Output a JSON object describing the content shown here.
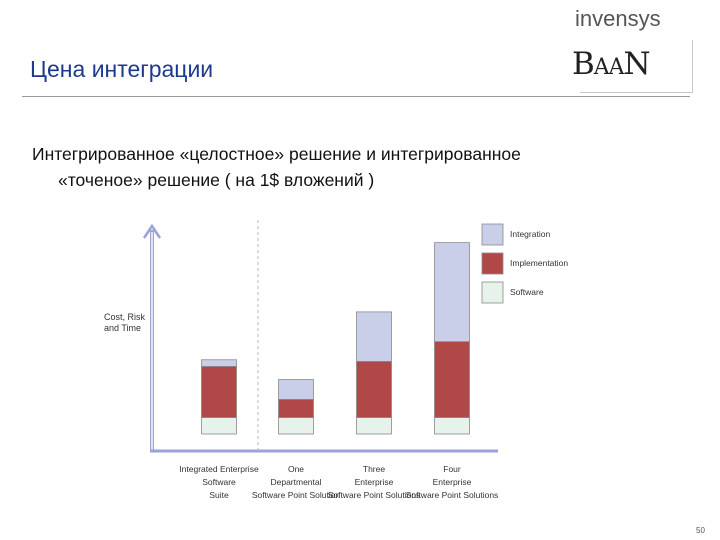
{
  "slide": {
    "title": "Цена интеграции",
    "subtitle_line1": "Интегрированное «целостное» решение и интегрированное",
    "subtitle_line2": "«точеное» решение ( на 1$ вложений )",
    "page_number": "50"
  },
  "logos": {
    "top": "invensys",
    "bottom": "BaaN"
  },
  "chart_data": {
    "type": "bar",
    "stacked": true,
    "ylabel": "Cost, Risk and Time",
    "categories": [
      "Integrated Enterprise Software Suite",
      "One Departmental Software Point Solution",
      "Three Enterprise Software Point Solutions",
      "Four Enterprise Software Point Solutions"
    ],
    "series": [
      {
        "name": "Software",
        "color": "#e6f2ea",
        "values": [
          1.0,
          1.0,
          1.0,
          1.0
        ]
      },
      {
        "name": "Implementation",
        "color": "#b04848",
        "values": [
          3.1,
          1.1,
          3.4,
          4.6
        ]
      },
      {
        "name": "Integration",
        "color": "#c9cfe8",
        "values": [
          0.4,
          1.2,
          3.0,
          6.0
        ]
      }
    ],
    "ylim": [
      0,
      12
    ],
    "axis_color": "#9aa3d4",
    "legend_position": "top-right",
    "separator": "dashed line between first and second category"
  }
}
